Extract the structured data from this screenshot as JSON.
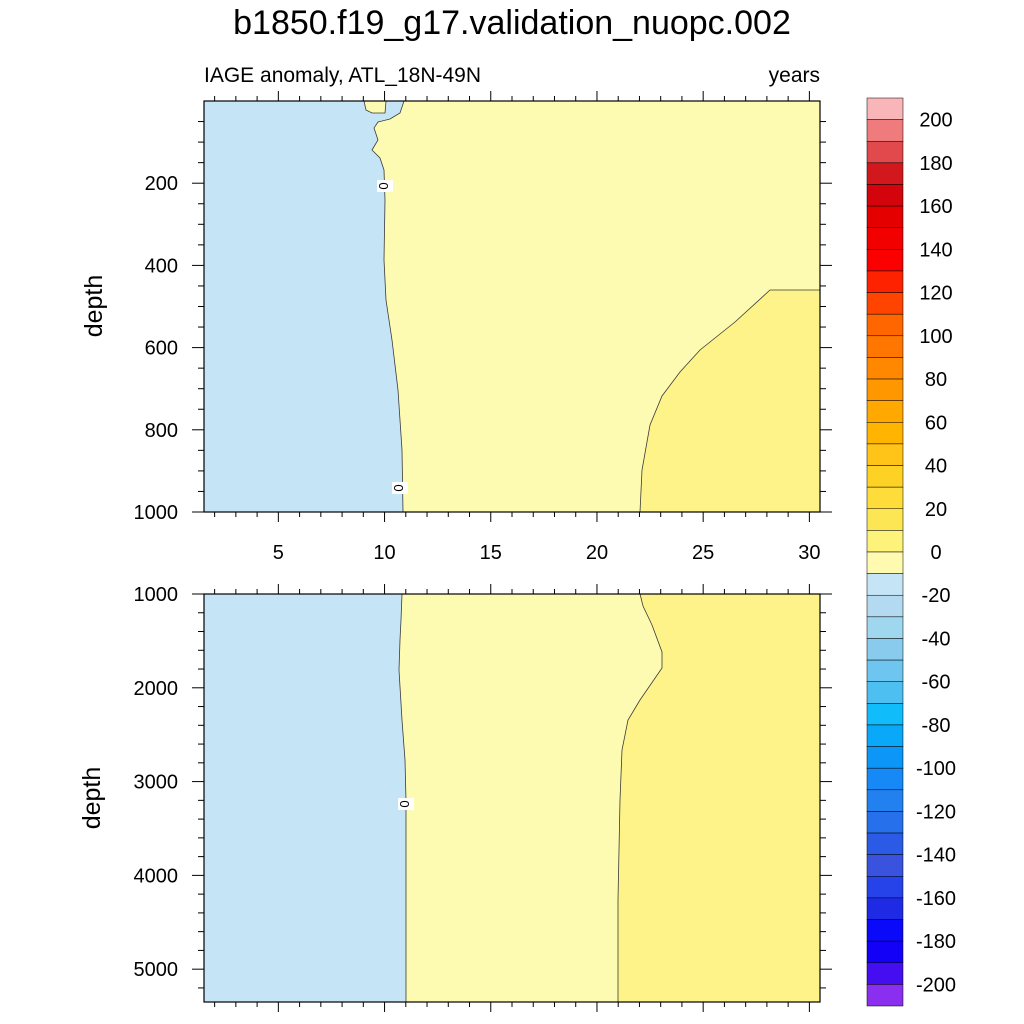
{
  "chart_data": [
    {
      "type": "heatmap",
      "panel": "upper",
      "title": "b1850.f19_g17.validation_nuopc.002",
      "left_string": "IAGE anomaly, ATL_18N-49N",
      "right_string": "years",
      "xlabel": "",
      "ylabel": "depth",
      "xlim": [
        1.5,
        30.5
      ],
      "ylim": [
        1000,
        0
      ],
      "x_ticks": [
        "5",
        "10",
        "15",
        "20",
        "25",
        "30"
      ],
      "y_ticks": [
        "200",
        "400",
        "600",
        "800",
        "1000"
      ],
      "regions": [
        {
          "level": "-10 to 0",
          "color": "#c5e4f5",
          "x_range": [
            1.5,
            10.8
          ]
        },
        {
          "level": "0 to 10",
          "color": "#fdfab2",
          "x_range": [
            9.5,
            30.5
          ]
        },
        {
          "level": "10 to 20",
          "color": "#fdf388",
          "x_range": [
            22,
            30.5
          ],
          "depth_range": [
            460,
            1000
          ]
        }
      ],
      "contour_labels": [
        "0",
        "0"
      ]
    },
    {
      "type": "heatmap",
      "panel": "lower",
      "xlabel": "",
      "ylabel": "depth",
      "xlim": [
        1.5,
        30.5
      ],
      "ylim": [
        5350,
        1000
      ],
      "y_ticks": [
        "1000",
        "2000",
        "3000",
        "4000",
        "5000"
      ],
      "regions": [
        {
          "level": "-10 to 0",
          "color": "#c5e4f5",
          "x_range": [
            1.5,
            11
          ]
        },
        {
          "level": "0 to 10",
          "color": "#fdfab2",
          "x_range": [
            11,
            22
          ]
        },
        {
          "level": "10 to 20",
          "color": "#fdf388",
          "x_range": [
            21,
            30.5
          ]
        }
      ],
      "contour_labels": [
        "0"
      ]
    }
  ],
  "colorbar": {
    "labels": [
      "200",
      "180",
      "160",
      "140",
      "120",
      "100",
      "80",
      "60",
      "40",
      "20",
      "0",
      "-20",
      "-40",
      "-60",
      "-80",
      "-100",
      "-120",
      "-140",
      "-160",
      "-180",
      "-200"
    ],
    "colors": [
      "#f8b6b9",
      "#f07b7c",
      "#e2494c",
      "#d2181c",
      "#d3040c",
      "#e50000",
      "#f20000",
      "#fc0000",
      "#fe2200",
      "#ff4400",
      "#ff6600",
      "#ff7700",
      "#ff8800",
      "#ff9800",
      "#fea800",
      "#ffb400",
      "#ffc417",
      "#fdd224",
      "#fedd3b",
      "#fde653",
      "#fef37a",
      "#fffaaf",
      "#c5e4f5",
      "#b4daf1",
      "#9ed7ee",
      "#88cbed",
      "#6ec6f0",
      "#4ebff1",
      "#10bdfa",
      "#0aa8f9",
      "#0b96f8",
      "#1689f6",
      "#2280ef",
      "#2770ec",
      "#2b5ae7",
      "#3a53de",
      "#2642e9",
      "#1f2ae5",
      "#0b09fa",
      "#1300f6",
      "#440ef0",
      "#8a2ef0"
    ]
  }
}
